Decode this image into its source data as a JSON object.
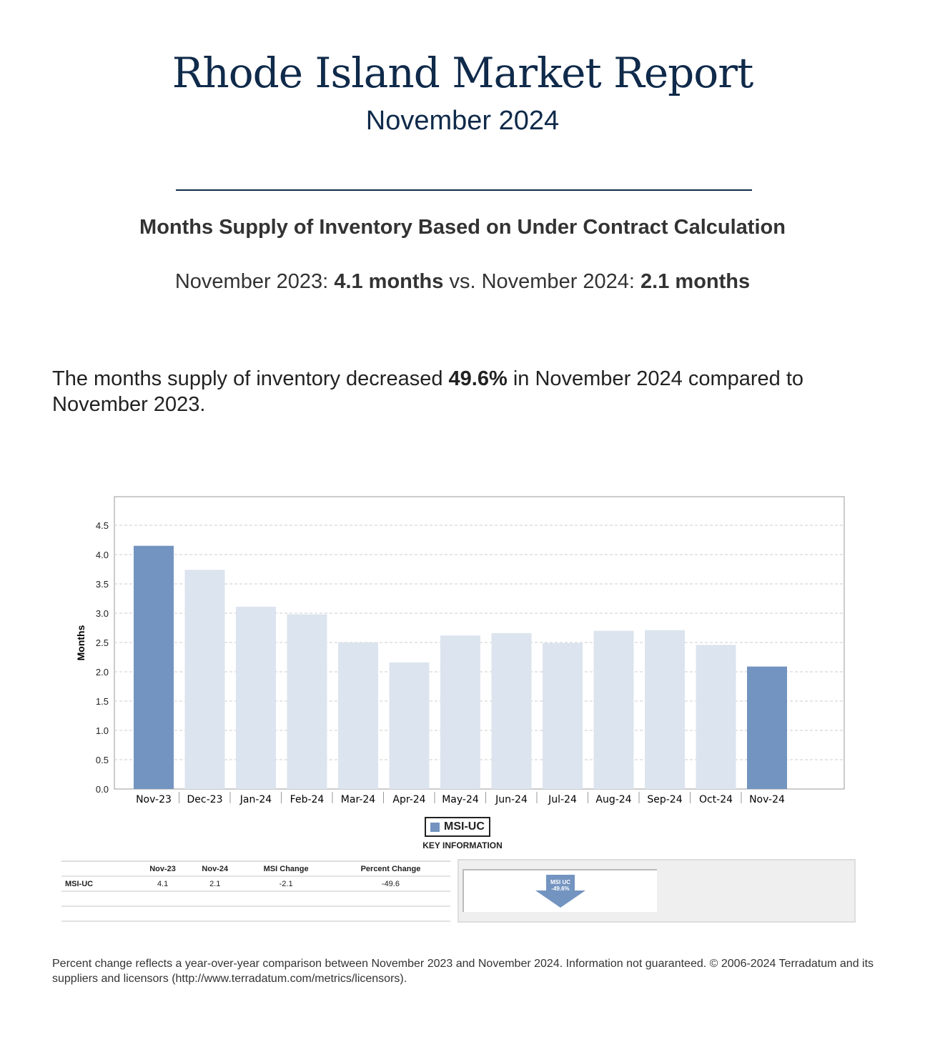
{
  "header": {
    "title": "Rhode Island Market Report",
    "subtitle": "November 2024"
  },
  "heading": "Months Supply of Inventory Based on Under Contract Calculation",
  "compare": {
    "label1": "November 2023: ",
    "value1": "4.1 months",
    "mid": " vs. November 2024: ",
    "value2": "2.1 months"
  },
  "summary": {
    "pre": "The months supply of inventory decreased ",
    "pct": "49.6%",
    "post": " in November 2024 compared to November 2023."
  },
  "chart_data": {
    "type": "bar",
    "categories": [
      "Nov-23",
      "Dec-23",
      "Jan-24",
      "Feb-24",
      "Mar-24",
      "Apr-24",
      "May-24",
      "Jun-24",
      "Jul-24",
      "Aug-24",
      "Sep-24",
      "Oct-24",
      "Nov-24"
    ],
    "values": [
      4.15,
      3.74,
      3.11,
      2.98,
      2.5,
      2.16,
      2.62,
      2.66,
      2.49,
      2.7,
      2.71,
      2.46,
      2.09
    ],
    "highlight": [
      0,
      12
    ],
    "ylabel": "Months",
    "ylim": [
      0,
      5
    ],
    "yticks": [
      "0.0",
      "0.5",
      "1.0",
      "1.5",
      "2.0",
      "2.5",
      "3.0",
      "3.5",
      "4.0",
      "4.5"
    ],
    "legend": "MSI-UC",
    "colors": {
      "highlight": "#7394c0",
      "normal": "#dce4ef"
    },
    "grid": true
  },
  "key_info": "KEY INFORMATION",
  "table": {
    "headers": [
      "",
      "Nov-23",
      "Nov-24",
      "MSI Change",
      "Percent Change"
    ],
    "rows": [
      [
        "MSI-UC",
        "4.1",
        "2.1",
        "-2.1",
        "-49.6"
      ]
    ]
  },
  "arrow": {
    "line1": "MSI UC",
    "line2": "-49.6%"
  },
  "footer": "Percent change reflects a year-over-year comparison between November 2023 and November 2024. Information not guaranteed. © 2006-2024 Terradatum and its suppliers and licensors (http://www.terradatum.com/metrics/licensors)."
}
